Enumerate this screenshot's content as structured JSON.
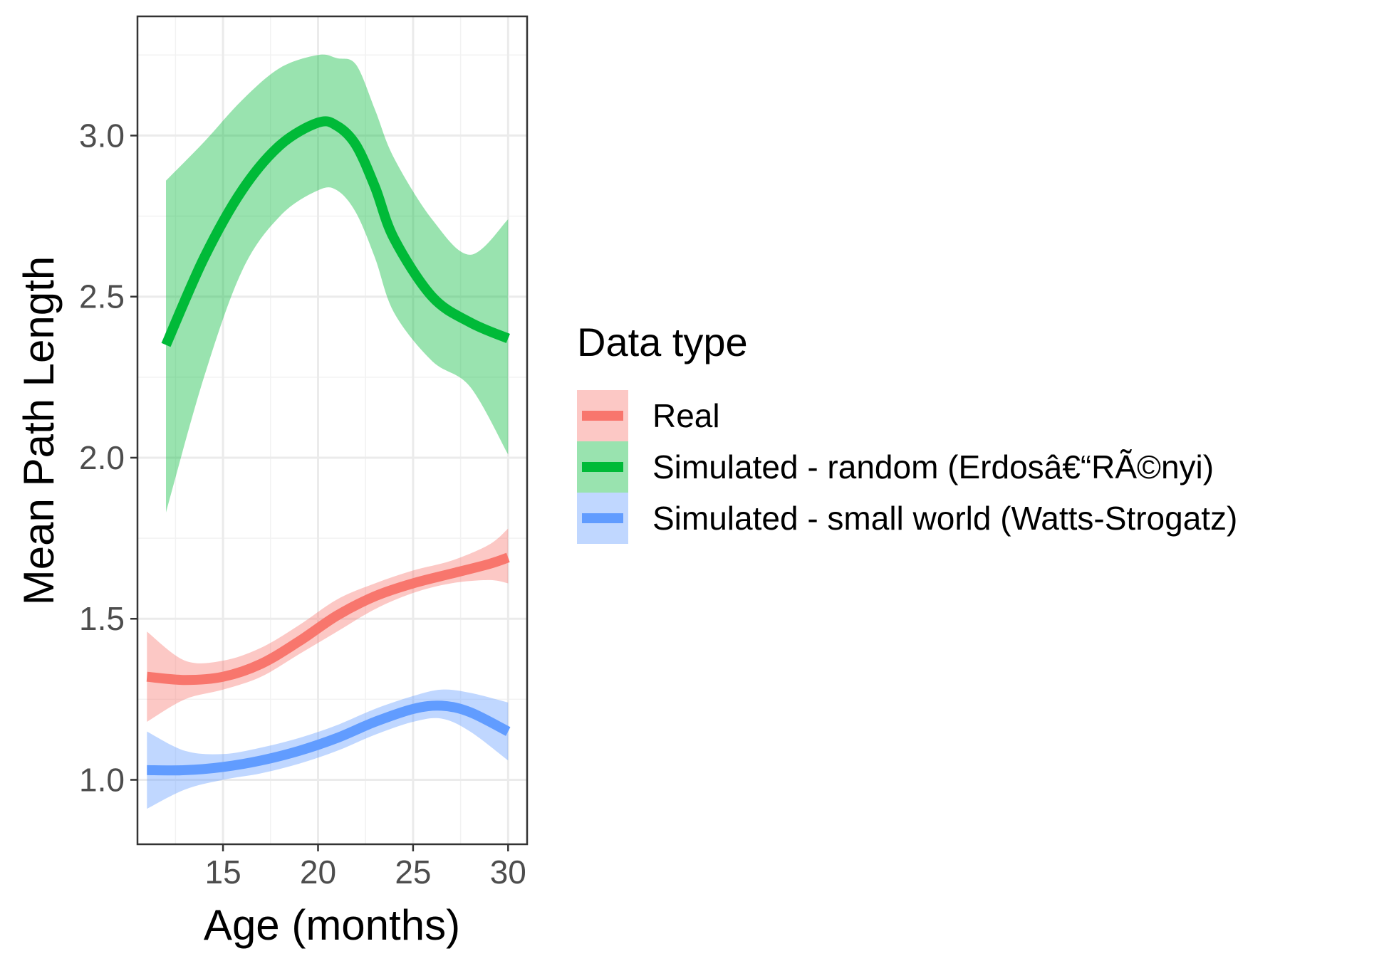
{
  "chart_data": {
    "type": "line",
    "xlabel": "Age (months)",
    "ylabel": "Mean Path Length",
    "xlim": [
      10.5,
      31
    ],
    "ylim": [
      0.8,
      3.37
    ],
    "x_ticks": [
      15,
      20,
      25,
      30
    ],
    "x_tick_labels": [
      "15",
      "20",
      "25",
      "30"
    ],
    "y_ticks": [
      1.0,
      1.5,
      2.0,
      2.5,
      3.0
    ],
    "y_tick_labels": [
      "1.0",
      "1.5",
      "2.0",
      "2.5",
      "3.0"
    ],
    "grid": true,
    "legend": {
      "title": "Data type",
      "position": "right",
      "entries": [
        "Real",
        "Simulated - random (Erdosâ€“RÃ©nyi)",
        "Simulated - small world (Watts-Strogatz)"
      ]
    },
    "series": [
      {
        "name": "Real",
        "color": "#F8766D",
        "ribbon_color": "#F8766D",
        "x": [
          11,
          13,
          15,
          17,
          19,
          21,
          23,
          25,
          27,
          29,
          30
        ],
        "y": [
          1.32,
          1.31,
          1.32,
          1.36,
          1.43,
          1.51,
          1.57,
          1.61,
          1.64,
          1.67,
          1.69
        ],
        "lower": [
          1.18,
          1.25,
          1.28,
          1.32,
          1.39,
          1.46,
          1.53,
          1.58,
          1.61,
          1.62,
          1.61
        ],
        "upper": [
          1.46,
          1.37,
          1.37,
          1.41,
          1.48,
          1.56,
          1.61,
          1.65,
          1.68,
          1.73,
          1.78
        ]
      },
      {
        "name": "Simulated - random (Erdosâ€“RÃ©nyi)",
        "color": "#00BA38",
        "ribbon_color": "#00BA38",
        "x": [
          12,
          14,
          16,
          18,
          20,
          21,
          22,
          23,
          24,
          26,
          28,
          30
        ],
        "y": [
          2.35,
          2.62,
          2.83,
          2.97,
          3.04,
          3.03,
          2.97,
          2.84,
          2.68,
          2.5,
          2.42,
          2.37
        ],
        "lower": [
          1.83,
          2.25,
          2.58,
          2.75,
          2.83,
          2.83,
          2.76,
          2.62,
          2.45,
          2.3,
          2.22,
          2.01
        ],
        "upper": [
          2.86,
          2.98,
          3.11,
          3.21,
          3.25,
          3.24,
          3.22,
          3.08,
          2.93,
          2.74,
          2.63,
          2.74
        ]
      },
      {
        "name": "Simulated - small world (Watts-Strogatz)",
        "color": "#619CFF",
        "ribbon_color": "#619CFF",
        "x": [
          11,
          13,
          15,
          17,
          19,
          21,
          23,
          25,
          26.5,
          28,
          30
        ],
        "y": [
          1.03,
          1.03,
          1.04,
          1.06,
          1.09,
          1.13,
          1.18,
          1.22,
          1.23,
          1.21,
          1.15
        ],
        "lower": [
          0.91,
          0.97,
          1.0,
          1.02,
          1.05,
          1.09,
          1.14,
          1.18,
          1.19,
          1.15,
          1.06
        ],
        "upper": [
          1.15,
          1.09,
          1.08,
          1.1,
          1.13,
          1.17,
          1.22,
          1.26,
          1.28,
          1.27,
          1.24
        ]
      }
    ]
  }
}
